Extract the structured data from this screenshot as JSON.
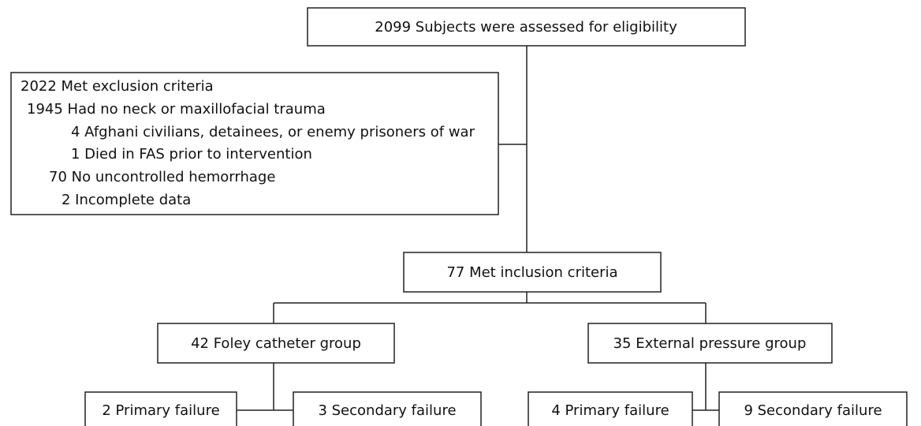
{
  "nodes": [
    {
      "label": "2099 Subjects were assessed for eligibility"
    },
    {
      "label": "77 Met inclusion criteria"
    },
    {
      "label": "42 Foley catheter group"
    },
    {
      "label": "35 External pressure group"
    },
    {
      "label": "2 Primary failure"
    },
    {
      "label": "3 Secondary failure"
    },
    {
      "label": "4 Primary failure"
    },
    {
      "label": "9 Secondary failure"
    }
  ],
  "exclusion": {
    "lines": [
      "2022 Met exclusion criteria",
      "1945 Had no neck or maxillofacial trauma",
      "4 Afghani civilians, detainees, or enemy prisoners of war",
      "1 Died in FAS prior to intervention",
      "70 No uncontrolled hemorrhage",
      "2 Incomplete data"
    ]
  }
}
